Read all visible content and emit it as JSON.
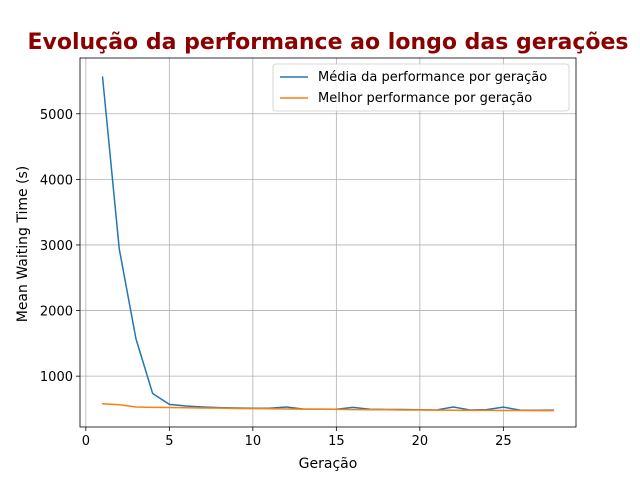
{
  "chart_data": {
    "type": "line",
    "title": "Evolução da performance ao longo das gerações",
    "xlabel": "Geração",
    "ylabel": "Mean Waiting Time (s)",
    "xlim": [
      -0.35,
      29.35
    ],
    "ylim": [
      225,
      5850
    ],
    "xticks": [
      0,
      5,
      10,
      15,
      20,
      25
    ],
    "yticks": [
      1000,
      2000,
      3000,
      4000,
      5000
    ],
    "grid": true,
    "legend_position": "top-right",
    "title_color": "#8b0000",
    "x": [
      1,
      2,
      3,
      4,
      5,
      6,
      7,
      8,
      9,
      10,
      11,
      12,
      13,
      14,
      15,
      16,
      17,
      18,
      19,
      20,
      21,
      22,
      23,
      24,
      25,
      26,
      27,
      28
    ],
    "series": [
      {
        "name": "Média da performance por geração",
        "color": "#1f77b4",
        "values": [
          5560,
          2940,
          1570,
          735,
          570,
          545,
          530,
          520,
          515,
          510,
          510,
          530,
          500,
          498,
          495,
          525,
          495,
          492,
          492,
          488,
          485,
          530,
          485,
          490,
          528,
          482,
          480,
          482
        ]
      },
      {
        "name": "Melhor performance por geração",
        "color": "#ff7f0e",
        "values": [
          580,
          565,
          530,
          525,
          522,
          518,
          515,
          512,
          508,
          505,
          503,
          500,
          497,
          495,
          493,
          490,
          488,
          487,
          485,
          484,
          482,
          480,
          479,
          478,
          477,
          476,
          475,
          475
        ]
      }
    ]
  }
}
